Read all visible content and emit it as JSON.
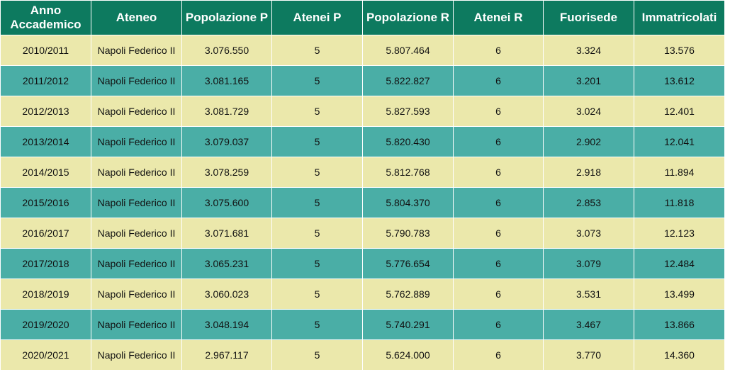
{
  "colors": {
    "header_bg": "#0d7a5f",
    "row_light": "#ebe8ab",
    "row_teal": "#4aaea6",
    "header_text": "#ffffff",
    "cell_text": "#111111"
  },
  "table": {
    "headers": [
      "Anno Accademico",
      "Ateneo",
      "Popolazione P",
      "Atenei P",
      "Popolazione R",
      "Atenei R",
      "Fuorisede",
      "Immatricolati"
    ],
    "rows": [
      [
        "2010/2011",
        "Napoli Federico II",
        "3.076.550",
        "5",
        "5.807.464",
        "6",
        "3.324",
        "13.576"
      ],
      [
        "2011/2012",
        "Napoli Federico II",
        "3.081.165",
        "5",
        "5.822.827",
        "6",
        "3.201",
        "13.612"
      ],
      [
        "2012/2013",
        "Napoli Federico II",
        "3.081.729",
        "5",
        "5.827.593",
        "6",
        "3.024",
        "12.401"
      ],
      [
        "2013/2014",
        "Napoli Federico II",
        "3.079.037",
        "5",
        "5.820.430",
        "6",
        "2.902",
        "12.041"
      ],
      [
        "2014/2015",
        "Napoli Federico II",
        "3.078.259",
        "5",
        "5.812.768",
        "6",
        "2.918",
        "11.894"
      ],
      [
        "2015/2016",
        "Napoli Federico II",
        "3.075.600",
        "5",
        "5.804.370",
        "6",
        "2.853",
        "11.818"
      ],
      [
        "2016/2017",
        "Napoli Federico II",
        "3.071.681",
        "5",
        "5.790.783",
        "6",
        "3.073",
        "12.123"
      ],
      [
        "2017/2018",
        "Napoli Federico II",
        "3.065.231",
        "5",
        "5.776.654",
        "6",
        "3.079",
        "12.484"
      ],
      [
        "2018/2019",
        "Napoli Federico II",
        "3.060.023",
        "5",
        "5.762.889",
        "6",
        "3.531",
        "13.499"
      ],
      [
        "2019/2020",
        "Napoli Federico II",
        "3.048.194",
        "5",
        "5.740.291",
        "6",
        "3.467",
        "13.866"
      ],
      [
        "2020/2021",
        "Napoli Federico II",
        "2.967.117",
        "5",
        "5.624.000",
        "6",
        "3.770",
        "14.360"
      ]
    ]
  }
}
